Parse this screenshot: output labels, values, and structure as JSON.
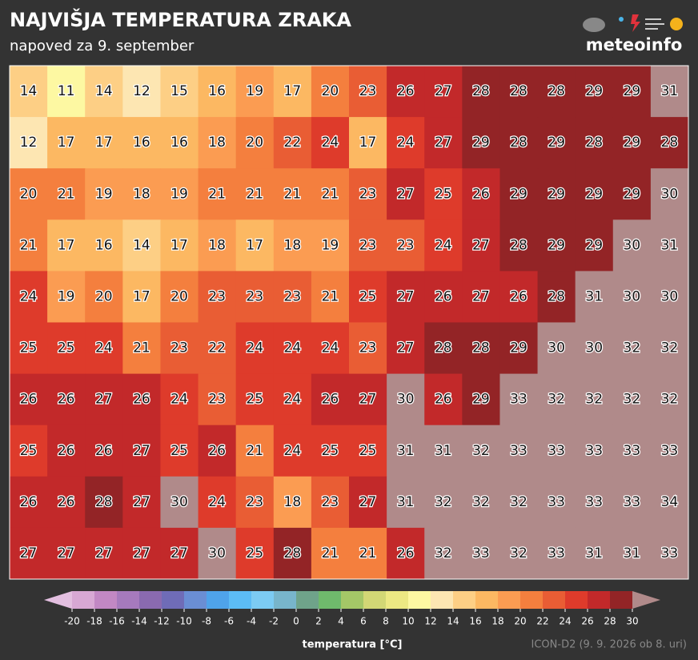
{
  "header": {
    "title": "NAJVIŠJA TEMPERATURA ZRAKA",
    "subtitle": "napoved za 9. september",
    "logo": "meteoinfo"
  },
  "map": {
    "values": [
      [
        14,
        11,
        14,
        12,
        15,
        16,
        19,
        17,
        20,
        23,
        26,
        27,
        28,
        28,
        28,
        29,
        29,
        31
      ],
      [
        12,
        17,
        17,
        16,
        16,
        18,
        20,
        22,
        24,
        17,
        24,
        27,
        29,
        28,
        29,
        28,
        29,
        28
      ],
      [
        20,
        21,
        19,
        18,
        19,
        21,
        21,
        21,
        21,
        23,
        27,
        25,
        26,
        29,
        29,
        29,
        29,
        30
      ],
      [
        21,
        17,
        16,
        14,
        17,
        18,
        17,
        18,
        19,
        23,
        23,
        24,
        27,
        28,
        29,
        29,
        30,
        31
      ],
      [
        24,
        19,
        20,
        17,
        20,
        23,
        23,
        23,
        21,
        25,
        27,
        26,
        27,
        26,
        28,
        31,
        30,
        30
      ],
      [
        25,
        25,
        24,
        21,
        23,
        22,
        24,
        24,
        24,
        23,
        27,
        28,
        28,
        29,
        30,
        30,
        32,
        32
      ],
      [
        26,
        26,
        27,
        26,
        24,
        23,
        25,
        24,
        26,
        27,
        30,
        26,
        29,
        33,
        32,
        32,
        32,
        32
      ],
      [
        25,
        26,
        26,
        27,
        25,
        26,
        21,
        24,
        25,
        25,
        31,
        31,
        32,
        33,
        33,
        33,
        33,
        33
      ],
      [
        26,
        26,
        28,
        27,
        30,
        24,
        23,
        18,
        23,
        27,
        31,
        32,
        32,
        32,
        33,
        33,
        33,
        34
      ],
      [
        27,
        27,
        27,
        27,
        27,
        30,
        25,
        28,
        21,
        21,
        26,
        32,
        33,
        32,
        33,
        31,
        31,
        33
      ]
    ]
  },
  "colorbar": {
    "label": "temperatura [°C]",
    "ticks": [
      -20,
      -18,
      -16,
      -14,
      -12,
      -10,
      -8,
      -6,
      -4,
      -2,
      0,
      2,
      4,
      6,
      8,
      10,
      12,
      14,
      16,
      18,
      20,
      22,
      24,
      26,
      28,
      30
    ],
    "colors": [
      "#d8a8d4",
      "#c288c4",
      "#a67abd",
      "#8a6ab0",
      "#6f6cb7",
      "#6a8ed4",
      "#4fa3ea",
      "#5cbcf5",
      "#7ccbf3",
      "#78b5cb",
      "#6fa38a",
      "#6fba6c",
      "#a4c767",
      "#d2d775",
      "#ece883",
      "#fdf8a2",
      "#fde6b2",
      "#fdcf85",
      "#fcb862",
      "#fb9c52",
      "#f47f3e",
      "#e95d34",
      "#de3b2b",
      "#c2292a",
      "#932426"
    ],
    "under_color": "#e3bfe0",
    "over_color": "#b08a8a"
  },
  "footer": {
    "source": "ICON-D2 (9. 9. 2026 ob 8. uri)"
  }
}
